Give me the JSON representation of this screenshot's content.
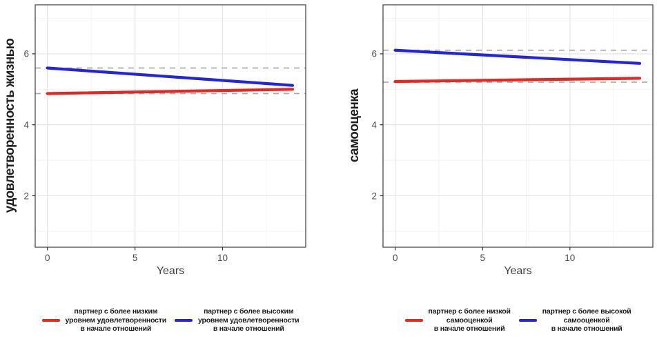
{
  "page": {
    "background": "#ffffff"
  },
  "colors": {
    "red": "#e9251f",
    "blue": "#2323e2",
    "grid_major": "#e6e6ee",
    "grid_minor": "#f2f2f7",
    "reference": "#acacac",
    "axis_border": "#4a4a4a",
    "tick_color": "#333333",
    "tick_label": "#4d4d4d",
    "axis_title": "#424242",
    "legend_text": "#1b1b1b"
  },
  "chart_data": [
    {
      "type": "line",
      "title": "",
      "ylabel": "удовлетворенность жизнью",
      "xlabel": "Years",
      "xlim": [
        -0.7,
        14.75
      ],
      "ylim": [
        0.55,
        7.38
      ],
      "xticks": [
        0,
        5,
        10
      ],
      "yticks": [
        2,
        4,
        6
      ],
      "xticks_minor": [
        2.5,
        7.5,
        12.5
      ],
      "yticks_minor": [
        1,
        3,
        5,
        7
      ],
      "grid": "on",
      "legend_position": "bottom",
      "reference_lines": [
        {
          "y": 5.6,
          "style": "dashed"
        },
        {
          "y": 4.88,
          "style": "dashed"
        }
      ],
      "series": [
        {
          "name": "партнер с более низким уровнем удовлетворенности в начале отношений",
          "color": "#e9251f",
          "x": [
            0,
            14
          ],
          "values": [
            4.88,
            5.0
          ]
        },
        {
          "name": "партнер с более высоким уровнем удовлетворенности в начале отношений",
          "color": "#2323e2",
          "x": [
            0,
            14
          ],
          "values": [
            5.6,
            5.11
          ]
        }
      ],
      "legend": [
        {
          "color": "#e9251f",
          "lines": [
            "партнер с более низким",
            "уровнем удовлетворенности",
            "в начале отношений"
          ]
        },
        {
          "color": "#2323e2",
          "lines": [
            "партнер с более высоким",
            "уровнем удовлетворенности",
            "в начале отношений"
          ]
        }
      ]
    },
    {
      "type": "line",
      "title": "",
      "ylabel": "самооценка",
      "xlabel": "Years",
      "xlim": [
        -0.7,
        14.75
      ],
      "ylim": [
        0.55,
        7.38
      ],
      "xticks": [
        0,
        5,
        10
      ],
      "yticks": [
        2,
        4,
        6
      ],
      "xticks_minor": [
        2.5,
        7.5,
        12.5
      ],
      "yticks_minor": [
        1,
        3,
        5,
        7
      ],
      "grid": "on",
      "legend_position": "bottom",
      "reference_lines": [
        {
          "y": 6.1,
          "style": "dashed"
        },
        {
          "y": 5.2,
          "style": "dashed"
        }
      ],
      "series": [
        {
          "name": "партнер с более низкой самооценкой в начале отношений",
          "color": "#e9251f",
          "x": [
            0,
            14
          ],
          "values": [
            5.22,
            5.31
          ]
        },
        {
          "name": "партнер с более высокой самооценкой в начале отношений",
          "color": "#2323e2",
          "x": [
            0,
            14
          ],
          "values": [
            6.1,
            5.73
          ]
        }
      ],
      "legend": [
        {
          "color": "#e9251f",
          "lines": [
            "партнер с более низкой",
            "самооценкой",
            "в начале отношений"
          ]
        },
        {
          "color": "#2323e2",
          "lines": [
            "партнер с более высокой",
            "самооценкой",
            "в начале отношений"
          ]
        }
      ]
    }
  ]
}
